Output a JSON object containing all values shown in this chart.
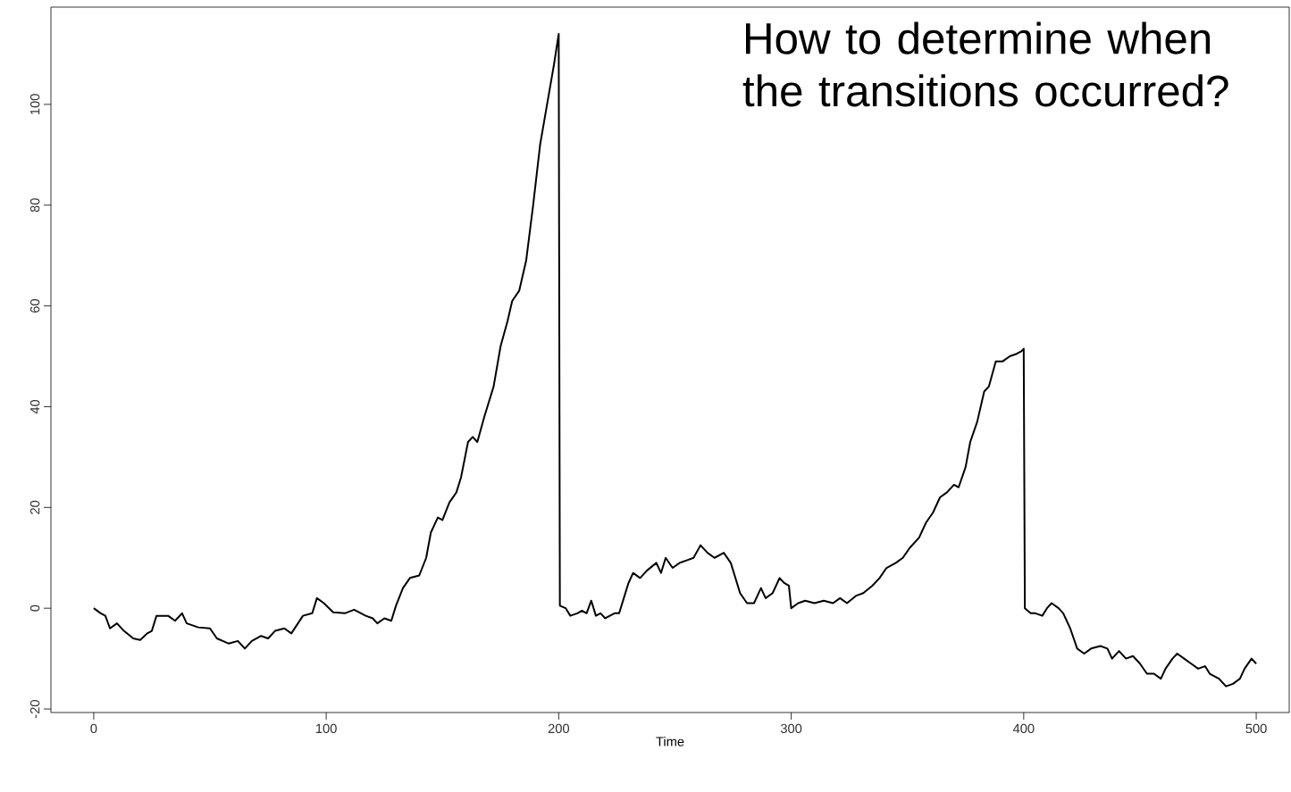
{
  "chart_data": {
    "type": "line",
    "xlabel": "Time",
    "annotations": [
      "How to determine when the transitions occurred?"
    ],
    "xlim": [
      -18.4,
      514.2
    ],
    "ylim": [
      -20.7,
      119.3
    ],
    "xticks": [
      0,
      100,
      200,
      300,
      400,
      500
    ],
    "yticks": [
      -20,
      0,
      20,
      40,
      60,
      80,
      100
    ],
    "grid": false,
    "marker": "none",
    "line_style": "solid",
    "series": [
      {
        "color": "#000000",
        "x": [
          0,
          3,
          5,
          7,
          10,
          13,
          17,
          20,
          23,
          25,
          27,
          32,
          35,
          38,
          40,
          45,
          50,
          53,
          58,
          62,
          65,
          68,
          72,
          75,
          78,
          82,
          85,
          90,
          94,
          96,
          99,
          103,
          108,
          112,
          117,
          120,
          122,
          125,
          128,
          130,
          133,
          136,
          140,
          143,
          145,
          148,
          150,
          153,
          156,
          158,
          161,
          163,
          165,
          168,
          172,
          175,
          178,
          180,
          183,
          186,
          189,
          192,
          195,
          198,
          200,
          200.5,
          203,
          205,
          208,
          210,
          212,
          214,
          216,
          218,
          220,
          224,
          226,
          228,
          230,
          232,
          235,
          238,
          242,
          244,
          246,
          249,
          252,
          255,
          258,
          261,
          264,
          267,
          271,
          274,
          276,
          278,
          281,
          284,
          287,
          289,
          292,
          295,
          297,
          299,
          300,
          303,
          306,
          310,
          314,
          318,
          321,
          324,
          328,
          331,
          335,
          338,
          341,
          345,
          348,
          351,
          355,
          358,
          361,
          364,
          367,
          370,
          372,
          375,
          377,
          380,
          383,
          385,
          388,
          391,
          394,
          397,
          399,
          400,
          400.5,
          403,
          405,
          408,
          410,
          412,
          415,
          417,
          420,
          423,
          426,
          429,
          433,
          436,
          438,
          441,
          444,
          447,
          450,
          453,
          456,
          459,
          461,
          464,
          466,
          469,
          472,
          475,
          478,
          480,
          484,
          487,
          490,
          493,
          495,
          498,
          500
        ],
        "values": [
          0,
          -1,
          -1.5,
          -4,
          -3,
          -4.5,
          -6,
          -6.3,
          -5,
          -4.5,
          -1.5,
          -1.5,
          -2.5,
          -1,
          -3,
          -3.8,
          -4,
          -6,
          -7,
          -6.5,
          -8,
          -6.5,
          -5.5,
          -6,
          -4.5,
          -4,
          -5,
          -1.5,
          -1,
          2,
          1,
          -0.8,
          -1,
          -0.3,
          -1.5,
          -2,
          -3,
          -2,
          -2.5,
          0.5,
          4,
          6,
          6.5,
          10,
          15,
          18,
          17.5,
          21,
          23,
          26,
          33,
          34,
          33,
          38,
          44,
          52,
          57,
          61,
          63,
          69,
          80,
          92,
          100,
          108,
          114,
          0.5,
          0,
          -1.5,
          -1,
          -0.5,
          -1,
          1.5,
          -1.5,
          -1,
          -2,
          -1,
          -1,
          2,
          5,
          7,
          6,
          7.5,
          9,
          7,
          10,
          8,
          9,
          9.5,
          10,
          12.5,
          11,
          10,
          11,
          9,
          6,
          3,
          1,
          1,
          4,
          2,
          3,
          6,
          5,
          4.5,
          0,
          1,
          1.5,
          1,
          1.5,
          1,
          2,
          1,
          2.5,
          3,
          4.5,
          6,
          8,
          9,
          10,
          12,
          14,
          17,
          19,
          22,
          23,
          24.5,
          24,
          28,
          33,
          37,
          43,
          44,
          49,
          49,
          50,
          50.5,
          51,
          51.5,
          0,
          -1,
          -1,
          -1.5,
          0,
          1,
          0,
          -1,
          -4,
          -8,
          -9,
          -8,
          -7.5,
          -8,
          -10,
          -8.5,
          -10,
          -9.5,
          -11,
          -13,
          -13,
          -14,
          -12,
          -10,
          -9,
          -10,
          -11,
          -12,
          -11.5,
          -13,
          -14,
          -15.5,
          -15,
          -14,
          -12,
          -10,
          -11
        ]
      }
    ]
  }
}
